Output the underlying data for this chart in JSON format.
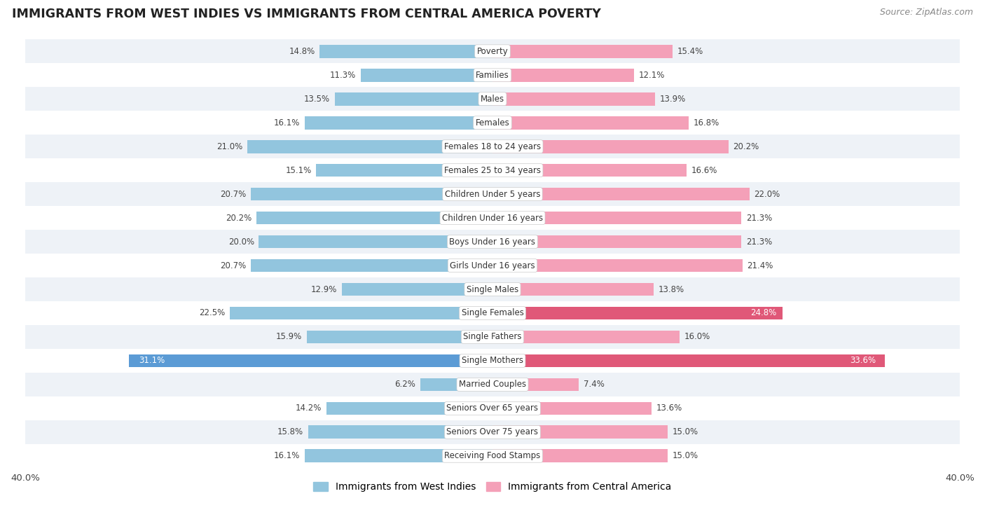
{
  "title": "IMMIGRANTS FROM WEST INDIES VS IMMIGRANTS FROM CENTRAL AMERICA POVERTY",
  "source": "Source: ZipAtlas.com",
  "categories": [
    "Poverty",
    "Families",
    "Males",
    "Females",
    "Females 18 to 24 years",
    "Females 25 to 34 years",
    "Children Under 5 years",
    "Children Under 16 years",
    "Boys Under 16 years",
    "Girls Under 16 years",
    "Single Males",
    "Single Females",
    "Single Fathers",
    "Single Mothers",
    "Married Couples",
    "Seniors Over 65 years",
    "Seniors Over 75 years",
    "Receiving Food Stamps"
  ],
  "west_indies": [
    14.8,
    11.3,
    13.5,
    16.1,
    21.0,
    15.1,
    20.7,
    20.2,
    20.0,
    20.7,
    12.9,
    22.5,
    15.9,
    31.1,
    6.2,
    14.2,
    15.8,
    16.1
  ],
  "central_america": [
    15.4,
    12.1,
    13.9,
    16.8,
    20.2,
    16.6,
    22.0,
    21.3,
    21.3,
    21.4,
    13.8,
    24.8,
    16.0,
    33.6,
    7.4,
    13.6,
    15.0,
    15.0
  ],
  "color_west_indies": "#92c5de",
  "color_central_america": "#f4a0b8",
  "color_west_indies_dark": "#5b9bd5",
  "color_central_america_dark": "#e05878",
  "xlim": 40.0,
  "legend_west_indies": "Immigrants from West Indies",
  "legend_central_america": "Immigrants from Central America",
  "bg_even": "#eef2f7",
  "bg_odd": "#ffffff"
}
